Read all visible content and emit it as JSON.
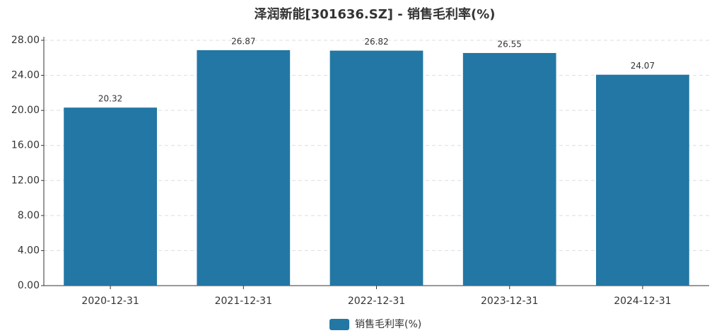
{
  "chart_data": {
    "type": "bar",
    "title": "泽润新能[301636.SZ] - 销售毛利率(%)",
    "categories": [
      "2020-12-31",
      "2021-12-31",
      "2022-12-31",
      "2023-12-31",
      "2024-12-31"
    ],
    "series": [
      {
        "name": "销售毛利率(%)",
        "color": "#2277a4",
        "values": [
          20.32,
          26.87,
          26.82,
          26.55,
          24.07
        ]
      }
    ],
    "ylim": [
      0,
      28
    ],
    "yticks": [
      {
        "value": 0,
        "label": "0.00"
      },
      {
        "value": 4,
        "label": "4.00"
      },
      {
        "value": 8,
        "label": "8.00"
      },
      {
        "value": 12,
        "label": "12.00"
      },
      {
        "value": 16,
        "label": "16.00"
      },
      {
        "value": 20,
        "label": "20.00"
      },
      {
        "value": 24,
        "label": "24.00"
      },
      {
        "value": 28,
        "label": "28.00"
      }
    ],
    "grid": true,
    "legend": "bottom"
  }
}
